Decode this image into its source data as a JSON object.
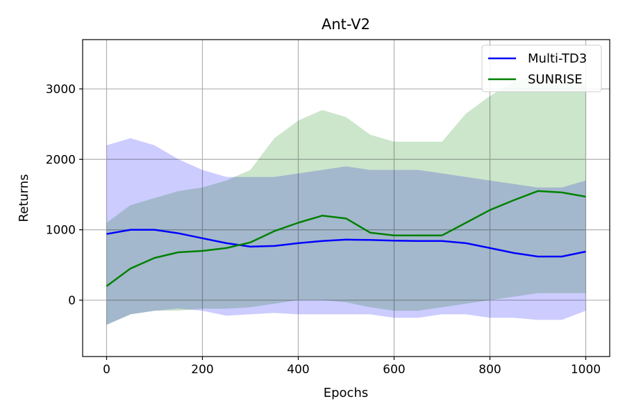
{
  "chart_data": {
    "type": "line",
    "title": "Ant-V2",
    "xlabel": "Epochs",
    "ylabel": "Returns",
    "xlim": [
      -50,
      1050
    ],
    "ylim": [
      -800,
      3700
    ],
    "xticks": [
      0,
      200,
      400,
      600,
      800,
      1000
    ],
    "yticks": [
      0,
      1000,
      2000,
      3000
    ],
    "grid": true,
    "legend_position": "top-right",
    "series": [
      {
        "name": "Multi-TD3",
        "color": "#0000ff",
        "band_color": "#ccccff",
        "x": [
          0,
          50,
          100,
          150,
          200,
          250,
          300,
          350,
          400,
          450,
          500,
          550,
          600,
          650,
          700,
          750,
          800,
          850,
          900,
          950,
          1000
        ],
        "values": [
          940,
          1000,
          1000,
          950,
          880,
          810,
          760,
          770,
          810,
          840,
          860,
          855,
          845,
          840,
          840,
          810,
          740,
          670,
          620,
          620,
          690
        ],
        "band_low": [
          -350,
          -200,
          -150,
          -120,
          -150,
          -220,
          -200,
          -180,
          -200,
          -200,
          -200,
          -200,
          -250,
          -250,
          -200,
          -200,
          -250,
          -250,
          -280,
          -280,
          -150
        ],
        "band_high": [
          2200,
          2300,
          2200,
          2000,
          1850,
          1750,
          1750,
          1750,
          1800,
          1850,
          1900,
          1850,
          1850,
          1850,
          1800,
          1750,
          1700,
          1650,
          1600,
          1600,
          1700
        ]
      },
      {
        "name": "SUNRISE",
        "color": "#008000",
        "band_color": "#cce6cc",
        "x": [
          0,
          50,
          100,
          150,
          200,
          250,
          300,
          350,
          400,
          450,
          500,
          550,
          600,
          650,
          700,
          750,
          800,
          850,
          900,
          950,
          1000
        ],
        "values": [
          200,
          450,
          600,
          680,
          700,
          740,
          820,
          980,
          1100,
          1200,
          1160,
          960,
          920,
          920,
          920,
          1100,
          1280,
          1420,
          1550,
          1530,
          1470
        ],
        "band_low": [
          -350,
          -200,
          -150,
          -150,
          -120,
          -120,
          -100,
          -50,
          0,
          0,
          -30,
          -100,
          -150,
          -150,
          -100,
          -50,
          0,
          50,
          100,
          100,
          100
        ],
        "band_high": [
          1100,
          1350,
          1450,
          1550,
          1600,
          1700,
          1850,
          2300,
          2550,
          2700,
          2600,
          2350,
          2250,
          2250,
          2250,
          2650,
          2900,
          3100,
          3200,
          3200,
          3100
        ]
      }
    ]
  }
}
